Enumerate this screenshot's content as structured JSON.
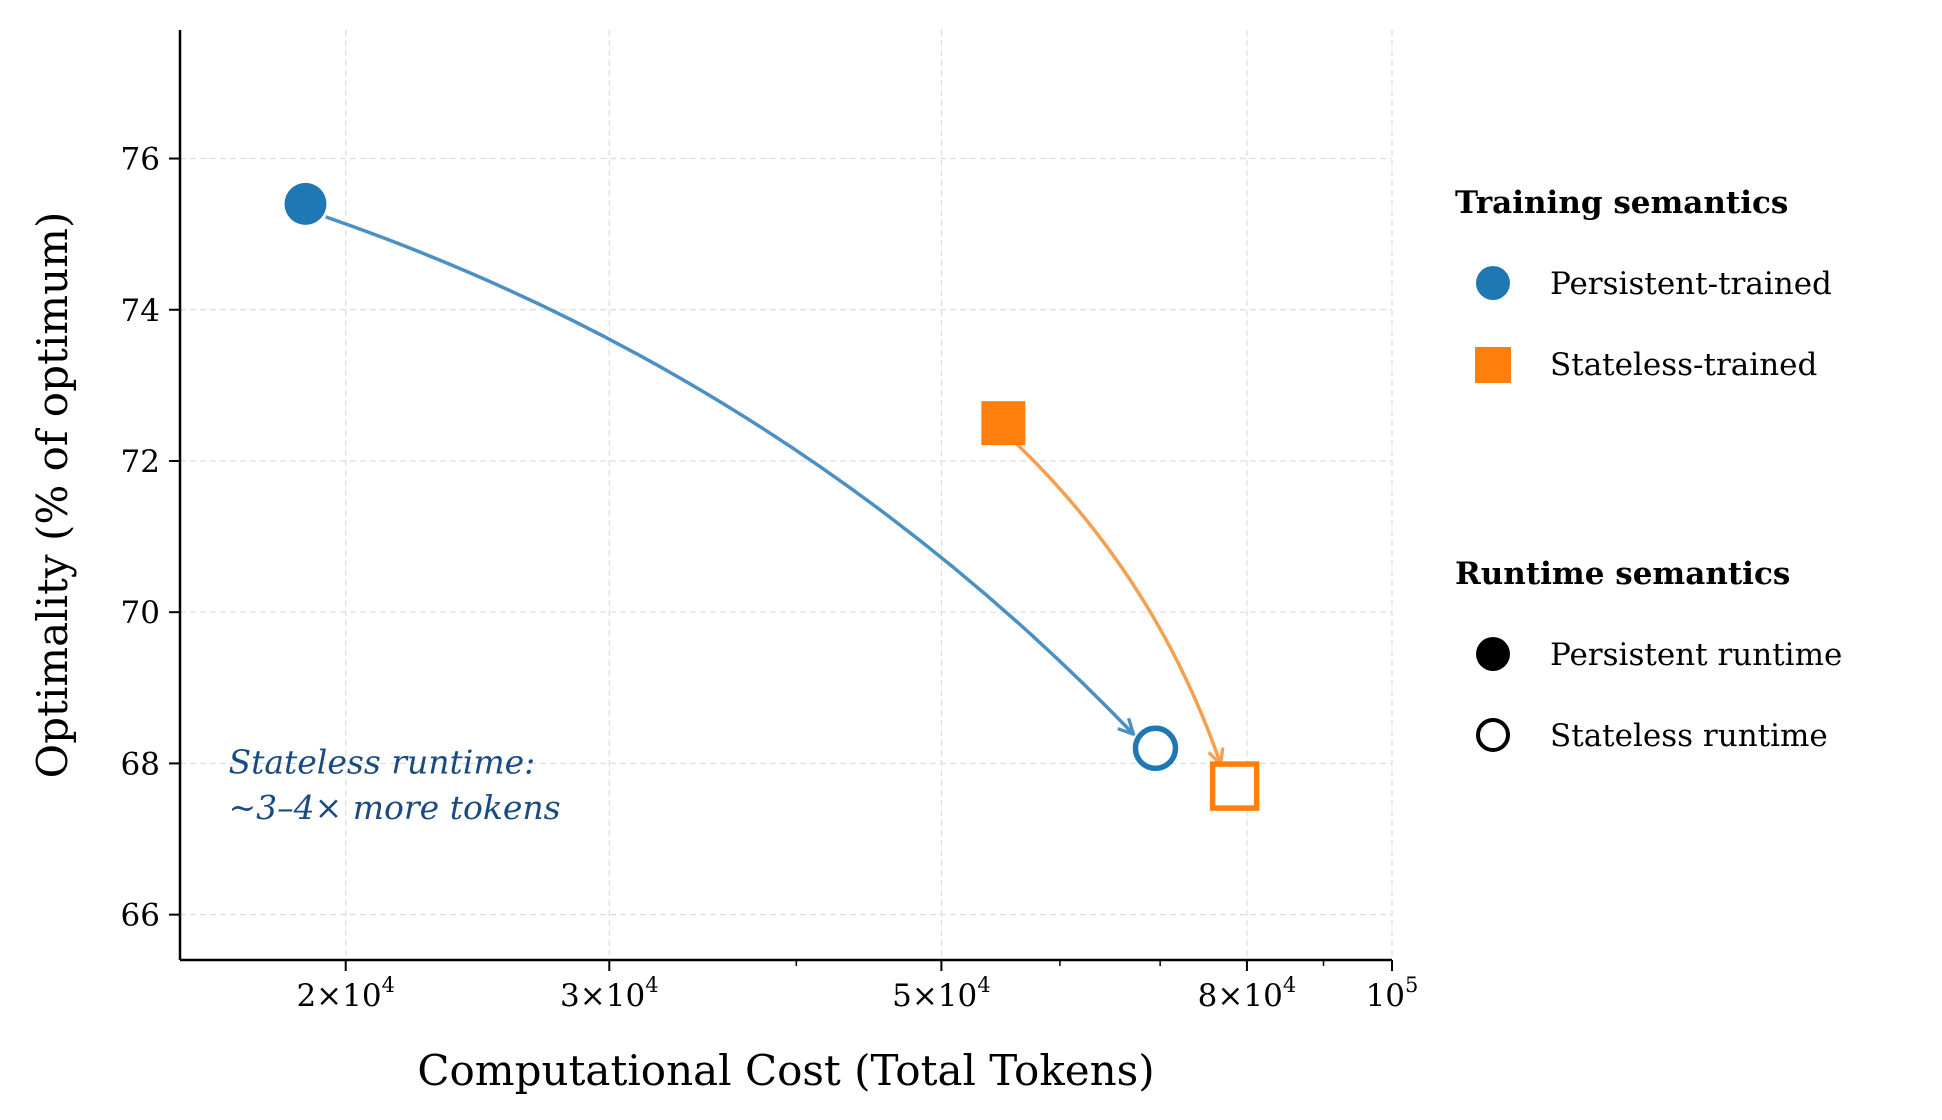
{
  "chart_data": {
    "type": "scatter",
    "xscale": "log",
    "xlabel": "Computational Cost (Total Tokens)",
    "ylabel": "Optimality (% of optimum)",
    "xlim": [
      15500,
      100000
    ],
    "ylim": [
      65.4,
      77.7
    ],
    "xticks": [
      {
        "value": 20000,
        "mantissa": "2",
        "times": "×",
        "base": "10",
        "exp": "4"
      },
      {
        "value": 30000,
        "mantissa": "3",
        "times": "×",
        "base": "10",
        "exp": "4"
      },
      {
        "value": 50000,
        "mantissa": "5",
        "times": "×",
        "base": "10",
        "exp": "4"
      },
      {
        "value": 80000,
        "mantissa": "8",
        "times": "×",
        "base": "10",
        "exp": "4"
      },
      {
        "value": 100000,
        "mantissa": "",
        "times": "",
        "base": "10",
        "exp": "5"
      }
    ],
    "xminor": [
      40000,
      60000,
      70000,
      90000
    ],
    "yticks": [
      66,
      68,
      70,
      72,
      74,
      76
    ],
    "grid": true,
    "points": [
      {
        "training": "Persistent-trained",
        "runtime": "Persistent runtime",
        "x": 18800,
        "y": 75.4,
        "marker": "circle",
        "filled": true,
        "color": "#1f77b4"
      },
      {
        "training": "Persistent-trained",
        "runtime": "Stateless runtime",
        "x": 69500,
        "y": 68.2,
        "marker": "circle",
        "filled": false,
        "color": "#1f77b4"
      },
      {
        "training": "Stateless-trained",
        "runtime": "Persistent runtime",
        "x": 55000,
        "y": 72.5,
        "marker": "square",
        "filled": true,
        "color": "#ff7f0e"
      },
      {
        "training": "Stateless-trained",
        "runtime": "Stateless runtime",
        "x": 78500,
        "y": 67.7,
        "marker": "square",
        "filled": false,
        "color": "#ff7f0e"
      }
    ],
    "arrows": [
      {
        "from": [
          18800,
          75.4
        ],
        "to": [
          69500,
          68.2
        ],
        "color": "#4a90c4"
      },
      {
        "from": [
          55000,
          72.5
        ],
        "to": [
          78500,
          67.7
        ],
        "color": "#f5a050"
      }
    ],
    "annotation": {
      "line1": "Stateless runtime:",
      "line2": "~3–4× more tokens",
      "x": 16700,
      "y1": 68.0,
      "y2": 67.4
    },
    "legend": {
      "placement": "right",
      "groups": [
        {
          "title": "Training semantics",
          "items": [
            {
              "label": "Persistent-trained",
              "marker": "circle",
              "filled": true,
              "color": "#1f77b4"
            },
            {
              "label": "Stateless-trained",
              "marker": "square",
              "filled": true,
              "color": "#ff7f0e"
            }
          ]
        },
        {
          "title": "Runtime semantics",
          "items": [
            {
              "label": "Persistent runtime",
              "marker": "circle",
              "filled": true,
              "color": "#000000"
            },
            {
              "label": "Stateless runtime",
              "marker": "circle",
              "filled": false,
              "color": "#000000"
            }
          ]
        }
      ]
    }
  }
}
